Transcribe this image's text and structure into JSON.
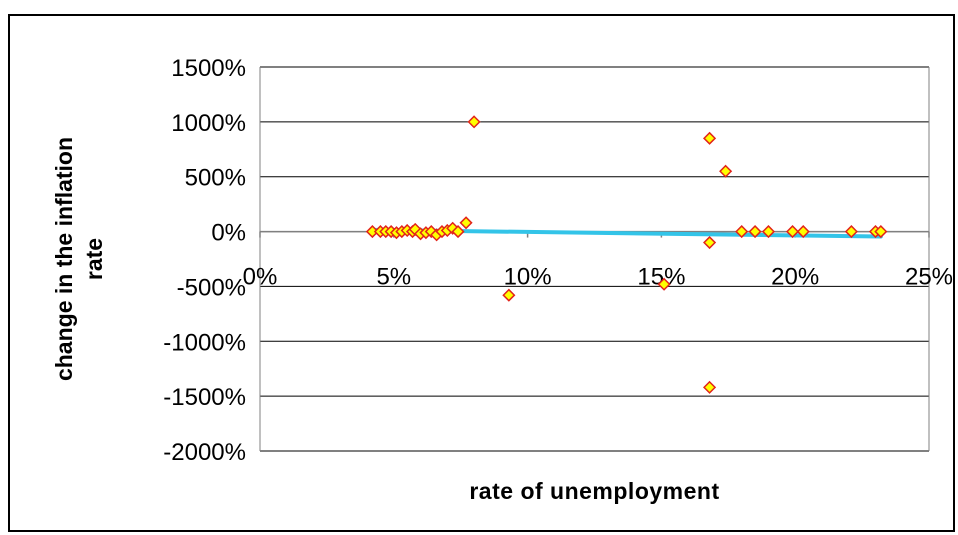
{
  "chart_data": {
    "type": "scatter",
    "title": "",
    "xlabel": "rate of unemployment",
    "ylabel_lines": [
      "change in the inflation",
      "rate"
    ],
    "xlim": [
      0,
      25
    ],
    "ylim": [
      -2000,
      1500
    ],
    "x_ticks": [
      0,
      5,
      10,
      15,
      20,
      25
    ],
    "x_tick_labels": [
      "0%",
      "5%",
      "10%",
      "15%",
      "20%",
      "25%"
    ],
    "y_ticks": [
      1500,
      1000,
      500,
      0,
      -500,
      -1000,
      -1500,
      -2000
    ],
    "y_tick_labels": [
      "1500%",
      "1000%",
      "500%",
      "0%",
      "-500%",
      "-1000%",
      "-1500%",
      "-2000%"
    ],
    "grid": {
      "horizontal": true,
      "vertical": false
    },
    "marker": {
      "shape": "diamond",
      "fill": "#FFFF00",
      "stroke": "#E2231A"
    },
    "trendline": {
      "color": "#33C4E8",
      "x": [
        4.2,
        23.2
      ],
      "y": [
        15,
        -45
      ]
    },
    "series": [
      {
        "points": [
          [
            4.2,
            0
          ],
          [
            4.5,
            0
          ],
          [
            4.7,
            0
          ],
          [
            4.9,
            0
          ],
          [
            5.1,
            -10
          ],
          [
            5.3,
            0
          ],
          [
            5.5,
            10
          ],
          [
            5.7,
            0
          ],
          [
            5.8,
            20
          ],
          [
            6.0,
            -20
          ],
          [
            6.2,
            -10
          ],
          [
            6.4,
            0
          ],
          [
            6.6,
            -30
          ],
          [
            6.8,
            0
          ],
          [
            7.0,
            10
          ],
          [
            7.2,
            30
          ],
          [
            7.4,
            0
          ],
          [
            7.7,
            80
          ],
          [
            8.0,
            1000
          ],
          [
            9.3,
            -580
          ],
          [
            15.1,
            -480
          ],
          [
            16.8,
            850
          ],
          [
            16.8,
            -100
          ],
          [
            16.8,
            -1420
          ],
          [
            17.4,
            550
          ],
          [
            18.0,
            0
          ],
          [
            18.5,
            0
          ],
          [
            19.0,
            0
          ],
          [
            19.9,
            0
          ],
          [
            20.3,
            0
          ],
          [
            22.1,
            0
          ],
          [
            23.0,
            0
          ],
          [
            23.2,
            0
          ]
        ]
      }
    ]
  }
}
